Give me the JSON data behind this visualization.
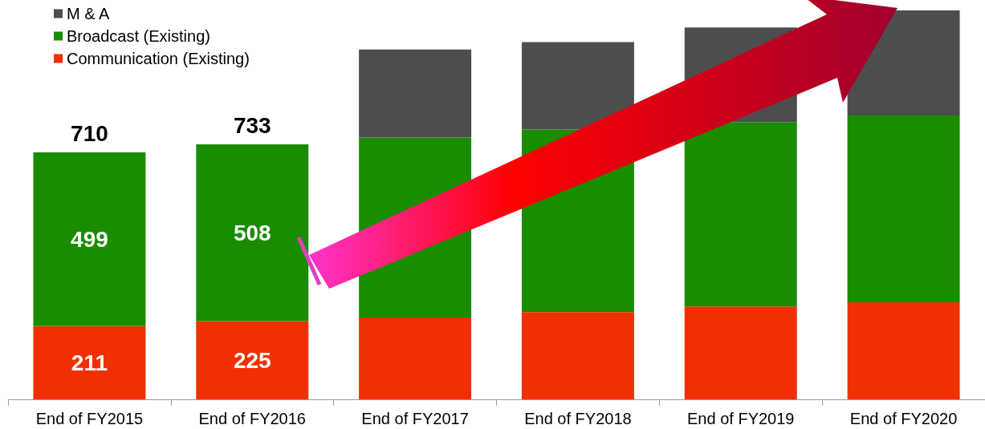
{
  "chart_data": {
    "type": "bar",
    "stacked": true,
    "categories": [
      "End of FY2015",
      "End of FY2016",
      "End of FY2017",
      "End of FY2018",
      "End of FY2019",
      "End of FY2020"
    ],
    "series": [
      {
        "name": "Communication (Existing)",
        "color": "#f03000",
        "values": [
          211,
          225,
          235,
          251,
          267,
          279
        ],
        "value_labels": [
          "211",
          "225",
          null,
          null,
          null,
          null
        ]
      },
      {
        "name": "Broadcast (Existing)",
        "color": "#1a8c00",
        "values": [
          499,
          508,
          518,
          525,
          530,
          537
        ],
        "value_labels": [
          "499",
          "508",
          null,
          null,
          null,
          null
        ]
      },
      {
        "name": "M & A",
        "color": "#4d4d4d",
        "values": [
          null,
          null,
          253,
          251,
          272,
          302
        ]
      }
    ],
    "totals": [
      "710",
      "733",
      null,
      null,
      null,
      null
    ],
    "legend": "top left"
  }
}
